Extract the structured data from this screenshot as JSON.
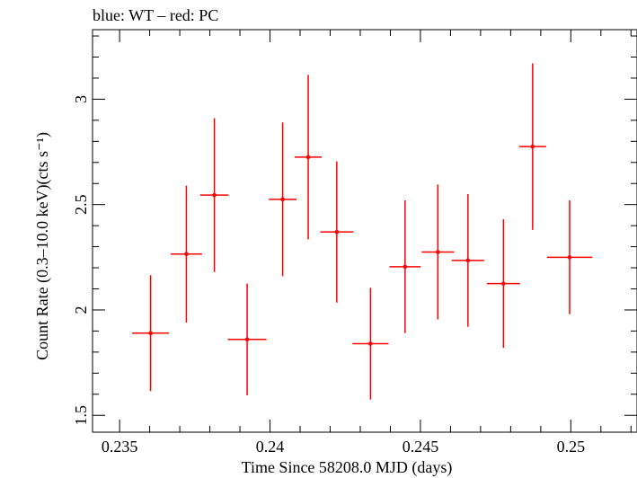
{
  "chart_data": {
    "type": "scatter",
    "title": "blue: WT – red: PC",
    "xlabel": "Time Since 58208.0 MJD (days)",
    "ylabel": "Count Rate (0.3–10.0 keV)(cts s⁻¹)",
    "xlim": [
      0.2341,
      0.2522
    ],
    "ylim": [
      1.42,
      3.33
    ],
    "x_ticks": [
      0.235,
      0.24,
      0.245,
      0.25
    ],
    "x_tick_labels": [
      "0.235",
      "0.24",
      "0.245",
      "0.25"
    ],
    "y_ticks": [
      1.5,
      2,
      2.5,
      3
    ],
    "y_tick_labels": [
      "1.5",
      "2",
      "2.5",
      "3"
    ],
    "grid": false,
    "series": [
      {
        "name": "PC",
        "color": "#ff0000",
        "points": [
          {
            "x": 0.23603,
            "xerr": 0.00061,
            "y": 1.89,
            "yerr": 0.275
          },
          {
            "x": 0.23722,
            "xerr": 0.00052,
            "y": 2.265,
            "yerr": 0.325
          },
          {
            "x": 0.23815,
            "xerr": 0.00047,
            "y": 2.545,
            "yerr": 0.365
          },
          {
            "x": 0.23924,
            "xerr": 0.00064,
            "y": 1.86,
            "yerr": 0.265
          },
          {
            "x": 0.24042,
            "xerr": 0.00046,
            "y": 2.525,
            "yerr": 0.365
          },
          {
            "x": 0.24127,
            "xerr": 0.00045,
            "y": 2.725,
            "yerr": 0.39
          },
          {
            "x": 0.24222,
            "xerr": 0.00055,
            "y": 2.37,
            "yerr": 0.335
          },
          {
            "x": 0.24334,
            "xerr": 0.0006,
            "y": 1.84,
            "yerr": 0.265
          },
          {
            "x": 0.24449,
            "xerr": 0.00052,
            "y": 2.205,
            "yerr": 0.315
          },
          {
            "x": 0.24558,
            "xerr": 0.00054,
            "y": 2.275,
            "yerr": 0.32
          },
          {
            "x": 0.24658,
            "xerr": 0.00054,
            "y": 2.235,
            "yerr": 0.315
          },
          {
            "x": 0.24776,
            "xerr": 0.00055,
            "y": 2.125,
            "yerr": 0.305
          },
          {
            "x": 0.24873,
            "xerr": 0.00045,
            "y": 2.775,
            "yerr": 0.395
          },
          {
            "x": 0.24996,
            "xerr": 0.00075,
            "y": 2.25,
            "yerr": 0.27
          }
        ]
      }
    ]
  }
}
